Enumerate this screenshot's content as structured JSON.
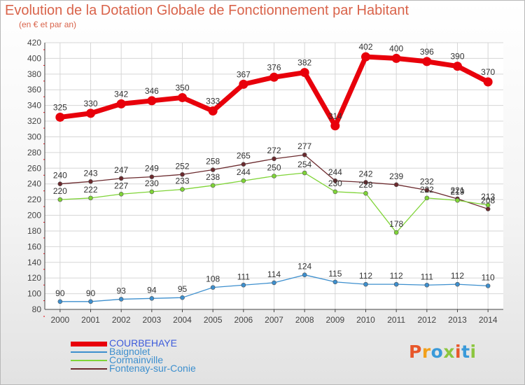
{
  "header": {
    "title": "Evolution de la Dotation Globale de Fonctionnement par Habitant",
    "subtitle": "(en € et par an)"
  },
  "logo": {
    "text": "Proxiti",
    "colors": [
      "#e8572a",
      "#f2a01c",
      "#3a9ad9",
      "#8cc63f",
      "#e8572a",
      "#3a9ad9",
      "#8cc63f"
    ]
  },
  "chart_data": {
    "type": "line",
    "x": [
      "2000",
      "2001",
      "2002",
      "2003",
      "2004",
      "2005",
      "2006",
      "2007",
      "2008",
      "2009",
      "2010",
      "2011",
      "2012",
      "2013",
      "2014"
    ],
    "ylim": [
      80,
      420
    ],
    "yticks": [
      80,
      100,
      120,
      140,
      160,
      180,
      200,
      220,
      240,
      260,
      280,
      300,
      320,
      340,
      360,
      380,
      400,
      420
    ],
    "grid": true,
    "legend_position": "bottom-left",
    "series": [
      {
        "name": "COURBEHAYE",
        "color": "#e8000b",
        "values": [
          325,
          330,
          342,
          346,
          350,
          333,
          367,
          376,
          382,
          314,
          402,
          400,
          396,
          390,
          370
        ]
      },
      {
        "name": "Baignolet",
        "color": "#3d8fce",
        "values": [
          90,
          90,
          93,
          94,
          95,
          108,
          111,
          114,
          124,
          115,
          112,
          112,
          111,
          112,
          110
        ]
      },
      {
        "name": "Cormainville",
        "color": "#7fd437",
        "values": [
          220,
          222,
          227,
          230,
          233,
          238,
          244,
          250,
          254,
          230,
          228,
          178,
          222,
          219,
          213
        ]
      },
      {
        "name": "Fontenay-sur-Conie",
        "color": "#6b2a2e",
        "values": [
          240,
          243,
          247,
          249,
          252,
          258,
          265,
          272,
          277,
          244,
          242,
          239,
          232,
          221,
          208
        ]
      }
    ]
  }
}
